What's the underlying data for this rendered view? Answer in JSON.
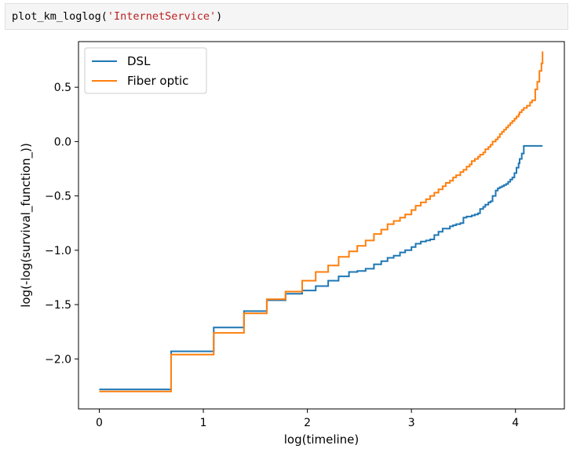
{
  "cell": {
    "code_prefix": "plot_km_loglog(",
    "code_arg": "'InternetService'",
    "code_suffix": ")"
  },
  "chart_data": {
    "type": "line",
    "title": "",
    "xlabel": "log(timeline)",
    "ylabel": "log(-log(survival_function_))",
    "xlim": [
      -0.2,
      4.47
    ],
    "ylim": [
      -2.46,
      0.92
    ],
    "xticks": [
      0,
      1,
      2,
      3,
      4
    ],
    "yticks": [
      -2.0,
      -1.5,
      -1.0,
      -0.5,
      0.0,
      0.5
    ],
    "xtick_labels": [
      "0",
      "1",
      "2",
      "3",
      "4"
    ],
    "ytick_labels": [
      "−2.0",
      "−1.5",
      "−1.0",
      "−0.5",
      "0.0",
      "0.5"
    ],
    "grid": false,
    "legend_position": "top-left",
    "series": [
      {
        "name": "DSL",
        "color": "#1f77b4",
        "step": true,
        "x": [
          0,
          0.69,
          1.1,
          1.39,
          1.61,
          1.79,
          1.95,
          2.08,
          2.2,
          2.3,
          2.4,
          2.48,
          2.56,
          2.64,
          2.71,
          2.77,
          2.83,
          2.89,
          2.94,
          3.0,
          3.04,
          3.09,
          3.14,
          3.18,
          3.22,
          3.26,
          3.3,
          3.33,
          3.37,
          3.4,
          3.43,
          3.47,
          3.5,
          3.53,
          3.56,
          3.58,
          3.61,
          3.64,
          3.66,
          3.69,
          3.71,
          3.74,
          3.76,
          3.78,
          3.81,
          3.83,
          3.85,
          3.87,
          3.89,
          3.91,
          3.93,
          3.95,
          3.97,
          3.99,
          4.01,
          4.03,
          4.04,
          4.06,
          4.08,
          4.11,
          4.14,
          4.19,
          4.26
        ],
        "y": [
          -2.28,
          -1.93,
          -1.71,
          -1.56,
          -1.46,
          -1.4,
          -1.37,
          -1.33,
          -1.28,
          -1.24,
          -1.2,
          -1.19,
          -1.17,
          -1.13,
          -1.1,
          -1.07,
          -1.05,
          -1.02,
          -1.0,
          -0.97,
          -0.94,
          -0.92,
          -0.91,
          -0.9,
          -0.86,
          -0.83,
          -0.8,
          -0.8,
          -0.78,
          -0.77,
          -0.76,
          -0.75,
          -0.7,
          -0.69,
          -0.69,
          -0.68,
          -0.67,
          -0.66,
          -0.62,
          -0.6,
          -0.58,
          -0.56,
          -0.55,
          -0.5,
          -0.45,
          -0.43,
          -0.42,
          -0.41,
          -0.4,
          -0.39,
          -0.37,
          -0.35,
          -0.33,
          -0.29,
          -0.24,
          -0.2,
          -0.16,
          -0.11,
          -0.04,
          -0.04,
          -0.04,
          -0.04,
          -0.04
        ]
      },
      {
        "name": "Fiber optic",
        "color": "#ff7f0e",
        "step": true,
        "x": [
          0,
          0.69,
          1.1,
          1.39,
          1.61,
          1.79,
          1.95,
          2.08,
          2.2,
          2.3,
          2.4,
          2.48,
          2.56,
          2.64,
          2.71,
          2.77,
          2.83,
          2.89,
          2.94,
          3.0,
          3.04,
          3.09,
          3.14,
          3.18,
          3.22,
          3.26,
          3.3,
          3.33,
          3.37,
          3.4,
          3.43,
          3.47,
          3.5,
          3.53,
          3.56,
          3.58,
          3.61,
          3.64,
          3.66,
          3.69,
          3.71,
          3.74,
          3.76,
          3.78,
          3.81,
          3.83,
          3.85,
          3.87,
          3.89,
          3.91,
          3.93,
          3.95,
          3.97,
          3.99,
          4.01,
          4.03,
          4.04,
          4.06,
          4.08,
          4.11,
          4.14,
          4.16,
          4.19,
          4.21,
          4.23,
          4.25,
          4.26
        ],
        "y": [
          -2.3,
          -1.96,
          -1.76,
          -1.58,
          -1.45,
          -1.38,
          -1.28,
          -1.2,
          -1.14,
          -1.06,
          -1.01,
          -0.96,
          -0.91,
          -0.85,
          -0.81,
          -0.76,
          -0.73,
          -0.7,
          -0.67,
          -0.63,
          -0.59,
          -0.56,
          -0.53,
          -0.5,
          -0.47,
          -0.44,
          -0.41,
          -0.38,
          -0.36,
          -0.33,
          -0.31,
          -0.28,
          -0.26,
          -0.23,
          -0.21,
          -0.18,
          -0.16,
          -0.14,
          -0.12,
          -0.1,
          -0.07,
          -0.05,
          -0.03,
          0.0,
          0.02,
          0.04,
          0.07,
          0.09,
          0.11,
          0.13,
          0.15,
          0.17,
          0.19,
          0.21,
          0.23,
          0.25,
          0.27,
          0.29,
          0.31,
          0.33,
          0.36,
          0.38,
          0.48,
          0.55,
          0.65,
          0.72,
          0.83
        ]
      }
    ]
  }
}
